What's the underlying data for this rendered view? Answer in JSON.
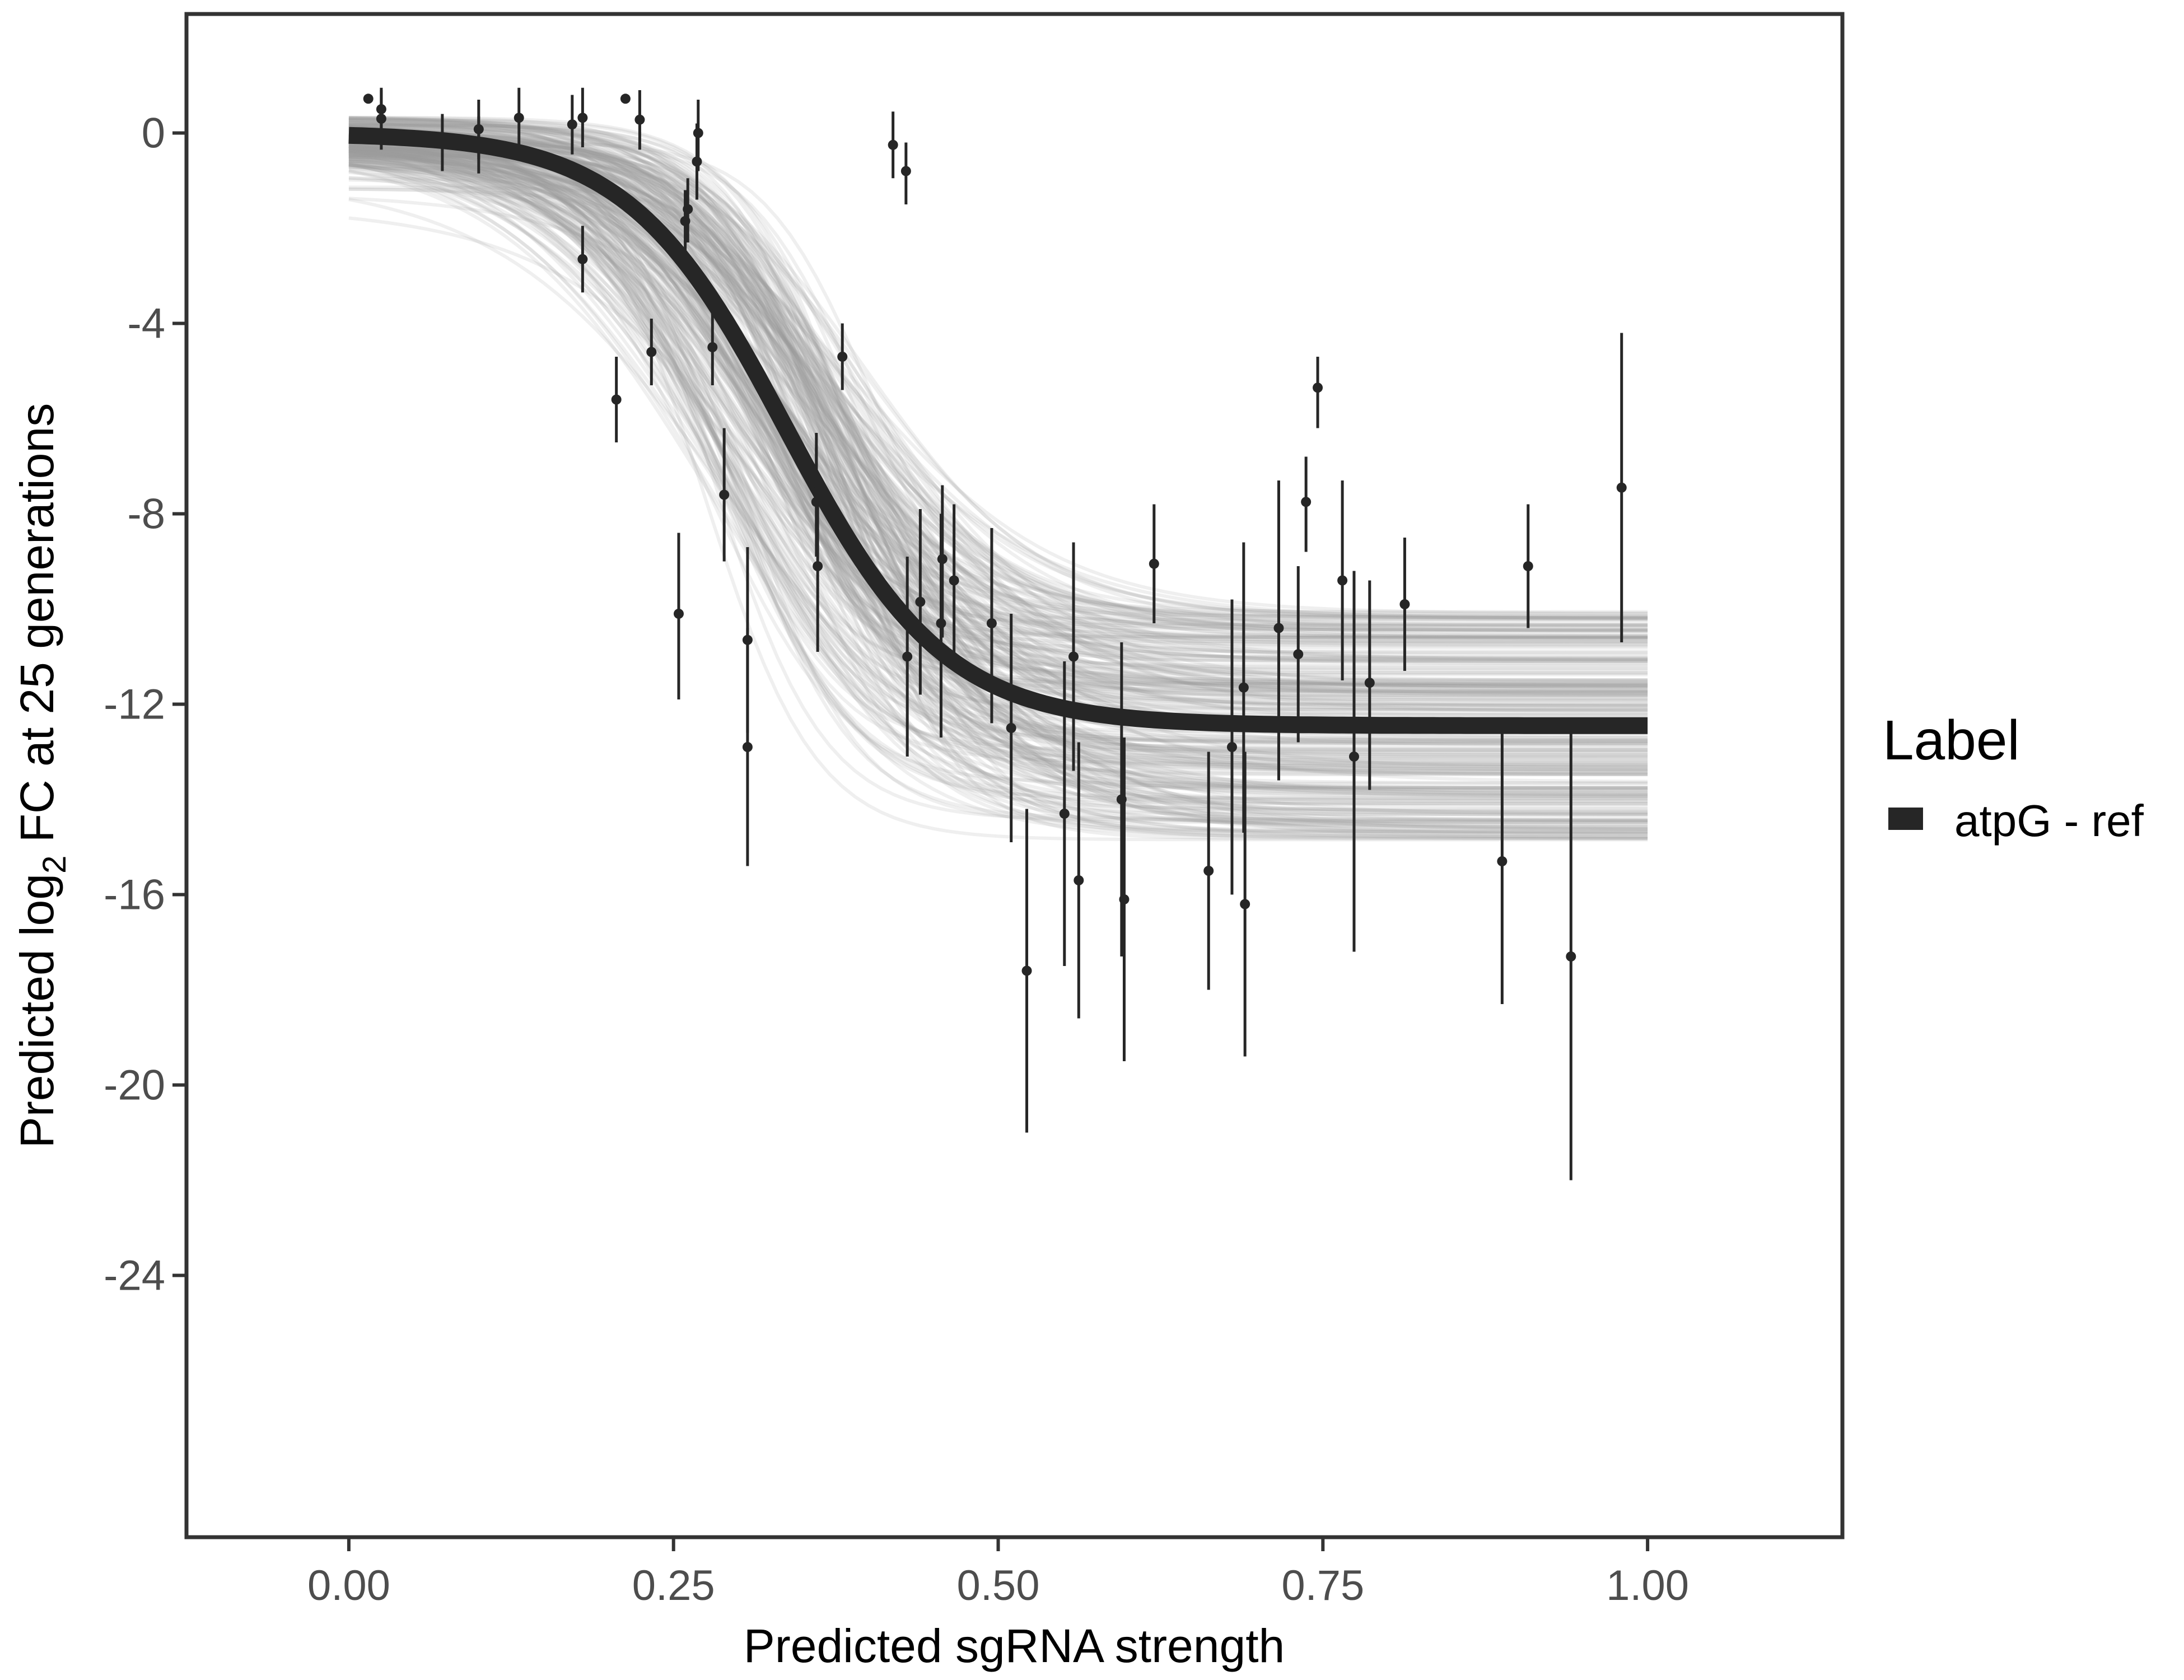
{
  "chart_data": {
    "type": "scatter",
    "xlabel": "Predicted sgRNA strength",
    "ylabel": {
      "before": "Predicted  log",
      "subscript": "2",
      "after": " FC at 25 generations"
    },
    "xlim": [
      -0.125,
      1.15
    ],
    "ylim": [
      -29.5,
      2.5
    ],
    "x_ticks": [
      0,
      0.25,
      0.5,
      0.75,
      1
    ],
    "x_tick_labels": [
      "0.00",
      "0.25",
      "0.50",
      "0.75",
      "1.00"
    ],
    "y_ticks": [
      0,
      -4,
      -8,
      -12,
      -16,
      -20,
      -24
    ],
    "y_tick_labels": [
      "0",
      "-4",
      "-8",
      "-12",
      "-16",
      "-20",
      "-24"
    ],
    "grid": false,
    "legend": {
      "title": "Label",
      "position": "right",
      "entries": [
        {
          "label": "atpG - ref",
          "color": "#262626"
        }
      ]
    },
    "fit": {
      "series": "atpG - ref",
      "form": "logistic",
      "upper": 0,
      "lower": -12.45,
      "midpoint": 0.337,
      "scale": 0.061,
      "color": "#262626",
      "band_color": "#999999"
    },
    "points": [
      {
        "x": 0.015,
        "y": 0.72
      },
      {
        "x": 0.025,
        "y": 0.5,
        "ylo": 0.1,
        "yhi": 0.95
      },
      {
        "x": 0.025,
        "y": 0.3,
        "ylo": -0.35,
        "yhi": 0.9
      },
      {
        "x": 0.072,
        "y": -0.2,
        "ylo": -0.8,
        "yhi": 0.4
      },
      {
        "x": 0.1,
        "y": 0.08,
        "ylo": -0.55,
        "yhi": 0.7
      },
      {
        "x": 0.1,
        "y": -0.25,
        "ylo": -0.85,
        "yhi": 0.35
      },
      {
        "x": 0.131,
        "y": 0.32,
        "ylo": -0.3,
        "yhi": 0.95
      },
      {
        "x": 0.172,
        "y": 0.18,
        "ylo": -0.45,
        "yhi": 0.8
      },
      {
        "x": 0.18,
        "y": 0.32,
        "ylo": -0.3,
        "yhi": 0.95
      },
      {
        "x": 0.18,
        "y": -2.65,
        "ylo": -3.35,
        "yhi": -1.95
      },
      {
        "x": 0.206,
        "y": -5.6,
        "ylo": -6.5,
        "yhi": -4.7
      },
      {
        "x": 0.213,
        "y": 0.72
      },
      {
        "x": 0.224,
        "y": 0.28,
        "ylo": -0.35,
        "yhi": 0.9
      },
      {
        "x": 0.233,
        "y": -4.6,
        "ylo": -5.3,
        "yhi": -3.9
      },
      {
        "x": 0.254,
        "y": -10.1,
        "ylo": -11.9,
        "yhi": -8.4
      },
      {
        "x": 0.259,
        "y": -1.85,
        "ylo": -2.5,
        "yhi": -1.2
      },
      {
        "x": 0.261,
        "y": -1.6,
        "ylo": -2.3,
        "yhi": -0.95
      },
      {
        "x": 0.268,
        "y": -0.6,
        "ylo": -1.4,
        "yhi": 0.2
      },
      {
        "x": 0.269,
        "y": 0.0,
        "ylo": -0.8,
        "yhi": 0.7
      },
      {
        "x": 0.28,
        "y": -4.5,
        "ylo": -5.3,
        "yhi": -3.7
      },
      {
        "x": 0.289,
        "y": -7.6,
        "ylo": -9.0,
        "yhi": -6.2
      },
      {
        "x": 0.307,
        "y": -10.65,
        "ylo": -12.6,
        "yhi": -8.7
      },
      {
        "x": 0.307,
        "y": -12.9,
        "ylo": -15.4,
        "yhi": -10.4
      },
      {
        "x": 0.36,
        "y": -7.35,
        "ylo": -8.4,
        "yhi": -6.3
      },
      {
        "x": 0.36,
        "y": -7.75,
        "ylo": -8.9,
        "yhi": -6.6
      },
      {
        "x": 0.361,
        "y": -9.1,
        "ylo": -10.9,
        "yhi": -7.3
      },
      {
        "x": 0.38,
        "y": -4.7,
        "ylo": -5.4,
        "yhi": -4.0
      },
      {
        "x": 0.419,
        "y": -0.25,
        "ylo": -0.95,
        "yhi": 0.45
      },
      {
        "x": 0.429,
        "y": -0.8,
        "ylo": -1.5,
        "yhi": -0.2
      },
      {
        "x": 0.43,
        "y": -11.0,
        "ylo": -13.1,
        "yhi": -8.9
      },
      {
        "x": 0.44,
        "y": -9.85,
        "ylo": -11.8,
        "yhi": -7.9
      },
      {
        "x": 0.456,
        "y": -10.3,
        "ylo": -12.7,
        "yhi": -8.0
      },
      {
        "x": 0.457,
        "y": -8.95,
        "ylo": -10.6,
        "yhi": -7.4
      },
      {
        "x": 0.466,
        "y": -9.4,
        "ylo": -11.0,
        "yhi": -7.8
      },
      {
        "x": 0.495,
        "y": -10.3,
        "ylo": -12.4,
        "yhi": -8.3
      },
      {
        "x": 0.51,
        "y": -12.5,
        "ylo": -14.9,
        "yhi": -10.1
      },
      {
        "x": 0.522,
        "y": -17.6,
        "ylo": -21.0,
        "yhi": -14.2
      },
      {
        "x": 0.551,
        "y": -14.3,
        "ylo": -17.5,
        "yhi": -11.1
      },
      {
        "x": 0.558,
        "y": -11.0,
        "ylo": -13.4,
        "yhi": -8.6
      },
      {
        "x": 0.562,
        "y": -15.7,
        "ylo": -18.6,
        "yhi": -12.8
      },
      {
        "x": 0.595,
        "y": -14.0,
        "ylo": -17.3,
        "yhi": -10.7
      },
      {
        "x": 0.597,
        "y": -16.1,
        "ylo": -19.5,
        "yhi": -12.7
      },
      {
        "x": 0.62,
        "y": -9.05,
        "ylo": -10.3,
        "yhi": -7.8
      },
      {
        "x": 0.662,
        "y": -15.5,
        "ylo": -18.0,
        "yhi": -13.0
      },
      {
        "x": 0.68,
        "y": -12.9,
        "ylo": -16.0,
        "yhi": -9.8
      },
      {
        "x": 0.689,
        "y": -11.65,
        "ylo": -14.7,
        "yhi": -8.6
      },
      {
        "x": 0.69,
        "y": -16.2,
        "ylo": -19.4,
        "yhi": -13.0
      },
      {
        "x": 0.716,
        "y": -10.4,
        "ylo": -13.6,
        "yhi": -7.3
      },
      {
        "x": 0.731,
        "y": -10.95,
        "ylo": -12.8,
        "yhi": -9.1
      },
      {
        "x": 0.737,
        "y": -7.75,
        "ylo": -8.8,
        "yhi": -6.8
      },
      {
        "x": 0.746,
        "y": -5.35,
        "ylo": -6.2,
        "yhi": -4.7
      },
      {
        "x": 0.765,
        "y": -9.4,
        "ylo": -11.5,
        "yhi": -7.3
      },
      {
        "x": 0.774,
        "y": -13.1,
        "ylo": -17.2,
        "yhi": -9.2
      },
      {
        "x": 0.786,
        "y": -11.55,
        "ylo": -13.8,
        "yhi": -9.4
      },
      {
        "x": 0.813,
        "y": -9.9,
        "ylo": -11.3,
        "yhi": -8.5
      },
      {
        "x": 0.888,
        "y": -15.3,
        "ylo": -18.3,
        "yhi": -12.3
      },
      {
        "x": 0.908,
        "y": -9.1,
        "ylo": -10.4,
        "yhi": -7.8
      },
      {
        "x": 0.941,
        "y": -17.3,
        "ylo": -22.0,
        "yhi": -12.6
      },
      {
        "x": 0.98,
        "y": -7.45,
        "ylo": -10.7,
        "yhi": -4.2
      }
    ]
  }
}
